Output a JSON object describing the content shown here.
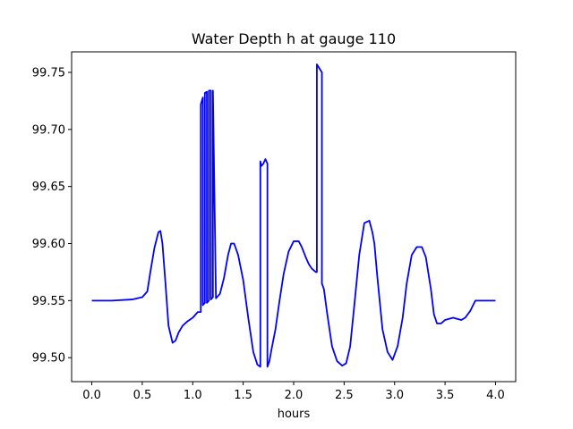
{
  "chart_data": {
    "type": "line",
    "title": "Water Depth h at gauge 110",
    "xlabel": "hours",
    "ylabel": "",
    "xlim": [
      -0.2,
      4.2
    ],
    "ylim": [
      99.479,
      99.768
    ],
    "grid": false,
    "xticks": [
      0.0,
      0.5,
      1.0,
      1.5,
      2.0,
      2.5,
      3.0,
      3.5,
      4.0
    ],
    "xtick_labels": [
      "0.0",
      "0.5",
      "1.0",
      "1.5",
      "2.0",
      "2.5",
      "3.0",
      "3.5",
      "4.0"
    ],
    "yticks": [
      99.5,
      99.55,
      99.6,
      99.65,
      99.7,
      99.75
    ],
    "ytick_labels": [
      "99.50",
      "99.55",
      "99.60",
      "99.65",
      "99.70",
      "99.75"
    ],
    "series": [
      {
        "color": "#0000ff",
        "x": [
          0.0,
          0.2,
          0.4,
          0.5,
          0.55,
          0.58,
          0.62,
          0.66,
          0.68,
          0.7,
          0.73,
          0.76,
          0.8,
          0.83,
          0.86,
          0.9,
          0.95,
          1.0,
          1.05,
          1.08,
          1.08,
          1.1,
          1.1,
          1.12,
          1.12,
          1.14,
          1.14,
          1.16,
          1.16,
          1.18,
          1.18,
          1.2,
          1.2,
          1.23,
          1.27,
          1.31,
          1.35,
          1.38,
          1.41,
          1.45,
          1.5,
          1.55,
          1.6,
          1.64,
          1.67,
          1.67,
          1.68,
          1.7,
          1.72,
          1.74,
          1.74,
          1.76,
          1.78,
          1.82,
          1.86,
          1.9,
          1.95,
          2.0,
          2.05,
          2.08,
          2.12,
          2.15,
          2.18,
          2.22,
          2.23,
          2.23,
          2.28,
          2.28,
          2.3,
          2.33,
          2.38,
          2.43,
          2.48,
          2.52,
          2.56,
          2.6,
          2.65,
          2.7,
          2.75,
          2.78,
          2.8,
          2.83,
          2.88,
          2.93,
          2.98,
          3.03,
          3.08,
          3.12,
          3.17,
          3.22,
          3.27,
          3.31,
          3.36,
          3.39,
          3.42,
          3.46,
          3.5,
          3.54,
          3.58,
          3.62,
          3.66,
          3.7,
          3.75,
          3.8,
          3.85,
          3.9,
          3.95,
          4.0
        ],
        "y": [
          99.55,
          99.55,
          99.551,
          99.553,
          99.558,
          99.575,
          99.596,
          99.61,
          99.611,
          99.6,
          99.565,
          99.528,
          99.513,
          99.515,
          99.522,
          99.528,
          99.532,
          99.535,
          99.54,
          99.54,
          99.722,
          99.728,
          99.546,
          99.548,
          99.732,
          99.733,
          99.548,
          99.55,
          99.734,
          99.734,
          99.551,
          99.553,
          99.734,
          99.552,
          99.556,
          99.57,
          99.59,
          99.6,
          99.6,
          99.59,
          99.568,
          99.535,
          99.505,
          99.494,
          99.492,
          99.672,
          99.668,
          99.67,
          99.674,
          99.67,
          99.492,
          99.497,
          99.507,
          99.525,
          99.55,
          99.573,
          99.593,
          99.602,
          99.602,
          99.597,
          99.588,
          99.582,
          99.578,
          99.575,
          99.575,
          99.757,
          99.75,
          99.565,
          99.56,
          99.54,
          99.51,
          99.497,
          99.493,
          99.495,
          99.51,
          99.545,
          99.59,
          99.618,
          99.62,
          99.61,
          99.6,
          99.57,
          99.525,
          99.505,
          99.498,
          99.51,
          99.535,
          99.565,
          99.59,
          99.597,
          99.597,
          99.588,
          99.56,
          99.538,
          99.53,
          99.53,
          99.533,
          99.534,
          99.535,
          99.534,
          99.533,
          99.535,
          99.541,
          99.55,
          99.55,
          99.55,
          99.55,
          99.55
        ]
      }
    ]
  }
}
